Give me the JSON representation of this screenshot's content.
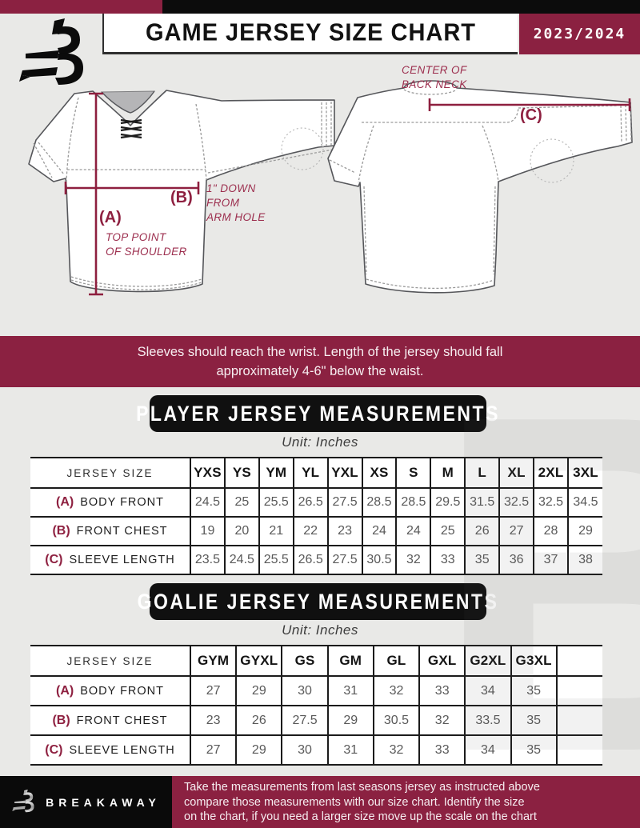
{
  "page": {
    "title": "GAME JERSEY SIZE CHART",
    "season": "2023/2024"
  },
  "logo": {
    "letter": "B",
    "brand": "BREAKAWAY"
  },
  "diagram": {
    "front": {
      "a_key": "(A)",
      "a_line1": "TOP POINT",
      "a_line2": "OF SHOULDER",
      "b_key": "(B)",
      "b_line1": "1\" DOWN",
      "b_line2": "FROM",
      "b_line3": "ARM HOLE"
    },
    "back": {
      "c_key": "(C)",
      "neck_line1": "CENTER OF",
      "neck_line2": "BACK NECK"
    }
  },
  "notice": {
    "line1": "Sleeves should reach the wrist. Length of the jersey should fall",
    "line2": "approximately 4-6\" below the waist."
  },
  "player": {
    "heading": "PLAYER JERSEY MEASUREMENTS",
    "unit": "Unit: Inches",
    "table": {
      "corner": "JERSEY SIZE",
      "columns": [
        "YXS",
        "YS",
        "YM",
        "YL",
        "YXL",
        "XS",
        "S",
        "M",
        "L",
        "XL",
        "2XL",
        "3XL"
      ],
      "rows": [
        {
          "key": "(A)",
          "label": "BODY FRONT",
          "values": [
            "24.5",
            "25",
            "25.5",
            "26.5",
            "27.5",
            "28.5",
            "28.5",
            "29.5",
            "31.5",
            "32.5",
            "32.5",
            "34.5"
          ]
        },
        {
          "key": "(B)",
          "label": "FRONT CHEST",
          "values": [
            "19",
            "20",
            "21",
            "22",
            "23",
            "24",
            "24",
            "25",
            "26",
            "27",
            "28",
            "29"
          ]
        },
        {
          "key": "(C)",
          "label": "SLEEVE LENGTH",
          "values": [
            "23.5",
            "24.5",
            "25.5",
            "26.5",
            "27.5",
            "30.5",
            "32",
            "33",
            "35",
            "36",
            "37",
            "38"
          ]
        }
      ]
    }
  },
  "goalie": {
    "heading": "GOALIE JERSEY MEASUREMENTS",
    "unit": "Unit: Inches",
    "table": {
      "corner": "JERSEY SIZE",
      "columns": [
        "GYM",
        "GYXL",
        "GS",
        "GM",
        "GL",
        "GXL",
        "G2XL",
        "G3XL",
        ""
      ],
      "rows": [
        {
          "key": "(A)",
          "label": "BODY FRONT",
          "values": [
            "27",
            "29",
            "30",
            "31",
            "32",
            "33",
            "34",
            "35",
            ""
          ]
        },
        {
          "key": "(B)",
          "label": "FRONT CHEST",
          "values": [
            "23",
            "26",
            "27.5",
            "29",
            "30.5",
            "32",
            "33.5",
            "35",
            ""
          ]
        },
        {
          "key": "(C)",
          "label": "SLEEVE LENGTH",
          "values": [
            "27",
            "29",
            "30",
            "31",
            "32",
            "33",
            "34",
            "35",
            ""
          ]
        }
      ]
    }
  },
  "footer": {
    "line1": "Take the measurements from last seasons jersey as instructed above",
    "line2": "compare those measurements  with our size chart. Identify the size",
    "line3": "on the chart, if you need a larger size move up the scale on the chart"
  },
  "colors": {
    "maroon": "#8b2141",
    "black": "#0c0c0c",
    "page_bg": "#e9e9e7",
    "value_gray": "#595959"
  }
}
